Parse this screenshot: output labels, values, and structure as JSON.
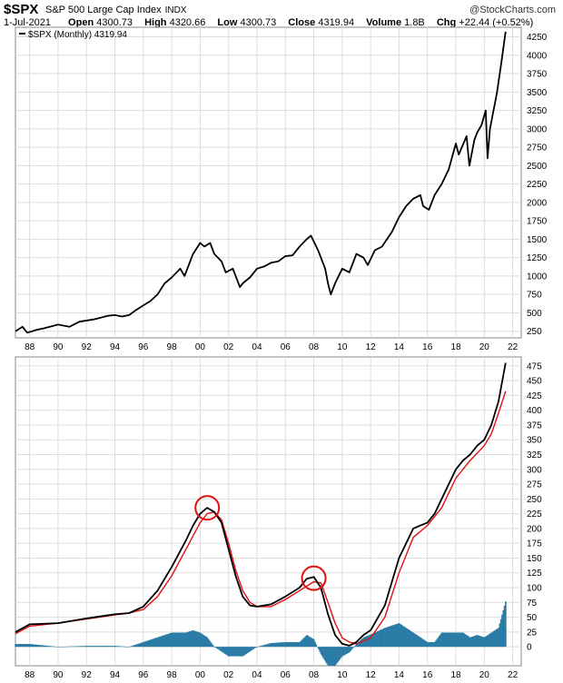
{
  "header": {
    "symbol": "$SPX",
    "name": "S&P 500 Large Cap Index",
    "exchange": "INDX",
    "brand": "@StockCharts.com",
    "date": "1-Jul-2021",
    "open_label": "Open",
    "open": "4300.73",
    "high_label": "High",
    "high": "4320.66",
    "low_label": "Low",
    "low": "4300.73",
    "close_label": "Close",
    "close": "4319.94",
    "volume_label": "Volume",
    "volume": "1.8B",
    "chg_label": "Chg",
    "chg": "+22.44 (+0.52%)"
  },
  "colors": {
    "price": "#000000",
    "ma": "#e01010",
    "hist": "#2a7ca6",
    "circle": "#e01010",
    "grid": "#dddddd"
  },
  "chart_data": [
    {
      "type": "line",
      "legend": "$SPX (Monthly) 4319.94",
      "x_ticks": [
        "88",
        "90",
        "92",
        "94",
        "96",
        "98",
        "00",
        "02",
        "04",
        "06",
        "08",
        "10",
        "12",
        "14",
        "16",
        "18",
        "20",
        "22"
      ],
      "y_ticks": [
        "250",
        "500",
        "750",
        "1000",
        "1250",
        "1500",
        "1750",
        "2000",
        "2250",
        "2500",
        "2750",
        "3000",
        "3250",
        "3500",
        "3750",
        "4000",
        "4250"
      ],
      "ylim": [
        160,
        4380
      ],
      "series": [
        {
          "x": [
            1987.0,
            1987.5,
            1987.83,
            1988.5,
            1989.0,
            1990.0,
            1990.8,
            1991.5,
            1992.5,
            1993.5,
            1994.0,
            1994.5,
            1995.0,
            1995.5,
            1996.0,
            1996.5,
            1997.0,
            1997.5,
            1998.0,
            1998.6,
            1998.9,
            1999.5,
            2000.0,
            2000.3,
            2000.7,
            2001.0,
            2001.5,
            2001.8,
            2002.3,
            2002.8,
            2003.0,
            2003.5,
            2004.0,
            2004.5,
            2005.0,
            2005.5,
            2006.0,
            2006.5,
            2007.0,
            2007.5,
            2007.8,
            2008.3,
            2008.8,
            2009.0,
            2009.2,
            2009.5,
            2010.0,
            2010.5,
            2011.0,
            2011.5,
            2011.8,
            2012.3,
            2012.8,
            2013.5,
            2014.0,
            2014.5,
            2015.0,
            2015.5,
            2015.7,
            2016.1,
            2016.5,
            2017.0,
            2017.5,
            2018.0,
            2018.2,
            2018.75,
            2018.95,
            2019.3,
            2019.5,
            2019.8,
            2020.1,
            2020.23,
            2020.4,
            2020.6,
            2020.75,
            2020.9,
            2021.2,
            2021.5
          ],
          "values": [
            250,
            310,
            230,
            270,
            290,
            340,
            310,
            380,
            410,
            460,
            470,
            450,
            470,
            540,
            600,
            660,
            750,
            900,
            980,
            1100,
            1000,
            1300,
            1450,
            1400,
            1450,
            1300,
            1200,
            1050,
            1100,
            850,
            900,
            980,
            1100,
            1130,
            1180,
            1200,
            1270,
            1280,
            1400,
            1500,
            1550,
            1350,
            1100,
            900,
            750,
            900,
            1100,
            1050,
            1300,
            1250,
            1150,
            1350,
            1400,
            1600,
            1800,
            1950,
            2050,
            2100,
            1950,
            1900,
            2100,
            2250,
            2450,
            2800,
            2650,
            2900,
            2500,
            2850,
            2950,
            3050,
            3250,
            2600,
            3000,
            3200,
            3350,
            3500,
            3900,
            4320
          ]
        }
      ]
    },
    {
      "type": "line",
      "x_ticks": [
        "88",
        "90",
        "92",
        "94",
        "96",
        "98",
        "00",
        "02",
        "04",
        "06",
        "08",
        "10",
        "12",
        "14",
        "16",
        "18",
        "20",
        "22"
      ],
      "y_ticks": [
        "0",
        "25",
        "50",
        "75",
        "100",
        "125",
        "150",
        "175",
        "200",
        "225",
        "250",
        "275",
        "300",
        "325",
        "350",
        "375",
        "400",
        "425",
        "450",
        "475"
      ],
      "ylim": [
        -32,
        490
      ],
      "series": [
        {
          "x": [
            1987.0,
            1988.0,
            1990.0,
            1992.0,
            1994.0,
            1995.0,
            1996.0,
            1997.0,
            1998.0,
            1999.0,
            1999.5,
            2000.0,
            2000.5,
            2001.0,
            2001.5,
            2002.0,
            2002.5,
            2003.0,
            2003.5,
            2004.0,
            2005.0,
            2006.0,
            2007.0,
            2007.5,
            2008.0,
            2008.5,
            2009.0,
            2009.5,
            2010.0,
            2010.5,
            2011.0,
            2011.5,
            2012.0,
            2013.0,
            2014.0,
            2015.0,
            2015.5,
            2016.0,
            2016.5,
            2017.0,
            2018.0,
            2018.5,
            2019.0,
            2019.5,
            2020.0,
            2020.5,
            2021.0,
            2021.5
          ],
          "values": [
            25,
            38,
            40,
            48,
            55,
            57,
            68,
            95,
            135,
            180,
            205,
            225,
            235,
            228,
            210,
            165,
            120,
            85,
            70,
            68,
            72,
            85,
            100,
            115,
            118,
            100,
            55,
            20,
            5,
            2,
            8,
            20,
            28,
            70,
            150,
            200,
            205,
            210,
            225,
            250,
            300,
            315,
            325,
            340,
            350,
            375,
            415,
            480
          ]
        },
        {
          "x": [
            1987.0,
            1988.0,
            1990.0,
            1992.0,
            1994.0,
            1995.0,
            1996.0,
            1997.0,
            1998.0,
            1999.0,
            2000.0,
            2000.5,
            2001.0,
            2001.5,
            2002.0,
            2002.5,
            2003.0,
            2003.5,
            2004.0,
            2005.0,
            2006.0,
            2007.0,
            2008.0,
            2008.5,
            2009.0,
            2009.5,
            2010.0,
            2010.5,
            2011.0,
            2012.0,
            2013.0,
            2014.0,
            2015.0,
            2016.0,
            2017.0,
            2018.0,
            2019.0,
            2020.0,
            2020.5,
            2021.0,
            2021.5
          ],
          "values": [
            22,
            35,
            40,
            47,
            54,
            57,
            63,
            85,
            120,
            165,
            210,
            225,
            228,
            215,
            175,
            130,
            95,
            75,
            68,
            68,
            80,
            95,
            110,
            108,
            75,
            40,
            15,
            8,
            5,
            15,
            50,
            125,
            185,
            205,
            235,
            285,
            315,
            340,
            360,
            395,
            432
          ]
        }
      ]
    }
  ]
}
